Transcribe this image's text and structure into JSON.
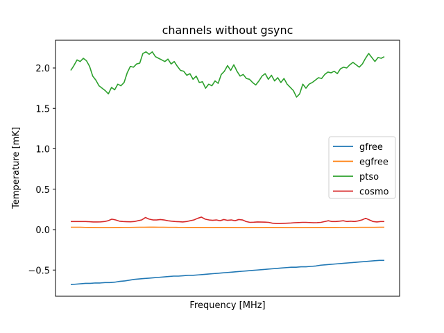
{
  "chart_data": {
    "type": "line",
    "title": "channels without gsync",
    "xlabel": "Frequency [MHz]",
    "ylabel": "Temperature [mK]",
    "x_ticks_visible": false,
    "ylim": [
      -0.8,
      2.35
    ],
    "y_ticks": [
      -0.5,
      0.0,
      0.5,
      1.0,
      1.5,
      2.0
    ],
    "y_tick_labels": [
      "−0.5",
      "0.0",
      "0.5",
      "1.0",
      "1.5",
      "2.0"
    ],
    "legend_position": "center-right",
    "series": [
      {
        "name": "gfree",
        "color": "#1f77b4",
        "values": [
          -0.68,
          -0.675,
          -0.67,
          -0.665,
          -0.665,
          -0.66,
          -0.66,
          -0.655,
          -0.655,
          -0.65,
          -0.64,
          -0.635,
          -0.625,
          -0.615,
          -0.61,
          -0.605,
          -0.6,
          -0.595,
          -0.59,
          -0.585,
          -0.58,
          -0.575,
          -0.575,
          -0.57,
          -0.565,
          -0.565,
          -0.56,
          -0.555,
          -0.55,
          -0.545,
          -0.54,
          -0.535,
          -0.53,
          -0.525,
          -0.52,
          -0.515,
          -0.51,
          -0.505,
          -0.5,
          -0.495,
          -0.49,
          -0.485,
          -0.48,
          -0.475,
          -0.47,
          -0.465,
          -0.465,
          -0.46,
          -0.46,
          -0.455,
          -0.45,
          -0.44,
          -0.435,
          -0.43,
          -0.425,
          -0.42,
          -0.415,
          -0.41,
          -0.405,
          -0.4,
          -0.395,
          -0.39,
          -0.385,
          -0.38,
          -0.38
        ]
      },
      {
        "name": "egfree",
        "color": "#ff7f0e",
        "values": [
          0.03,
          0.03,
          0.03,
          0.028,
          0.027,
          0.026,
          0.025,
          0.025,
          0.025,
          0.026,
          0.027,
          0.028,
          0.028,
          0.029,
          0.03,
          0.03,
          0.031,
          0.031,
          0.03,
          0.03,
          0.029,
          0.029,
          0.028,
          0.028,
          0.027,
          0.027,
          0.027,
          0.026,
          0.026,
          0.026,
          0.027,
          0.027,
          0.026,
          0.026,
          0.025,
          0.025,
          0.025,
          0.026,
          0.026,
          0.026,
          0.027,
          0.027,
          0.026,
          0.026,
          0.025,
          0.025,
          0.025,
          0.025,
          0.025,
          0.026,
          0.026,
          0.027,
          0.027,
          0.027,
          0.027,
          0.028,
          0.028,
          0.028,
          0.028,
          0.029,
          0.029,
          0.029,
          0.029,
          0.03,
          0.03
        ]
      },
      {
        "name": "ptso",
        "color": "#2ca02c",
        "values": [
          1.97,
          2.03,
          2.1,
          2.08,
          2.12,
          2.09,
          2.02,
          1.9,
          1.85,
          1.78,
          1.75,
          1.72,
          1.68,
          1.76,
          1.73,
          1.8,
          1.78,
          1.82,
          1.94,
          2.02,
          2.01,
          2.05,
          2.06,
          2.18,
          2.2,
          2.17,
          2.2,
          2.14,
          2.12,
          2.1,
          2.08,
          2.11,
          2.05,
          2.08,
          2.02,
          1.97,
          1.96,
          1.91,
          1.93,
          1.86,
          1.9,
          1.82,
          1.83,
          1.75,
          1.8,
          1.78,
          1.84,
          1.81,
          1.92,
          1.96,
          2.03,
          1.97,
          2.04,
          1.96,
          1.9,
          1.92,
          1.87,
          1.86,
          1.82,
          1.79,
          1.84,
          1.9,
          1.93,
          1.86,
          1.91,
          1.84,
          1.88,
          1.82,
          1.87,
          1.8,
          1.76,
          1.72,
          1.64,
          1.68,
          1.8,
          1.75,
          1.8,
          1.82,
          1.85,
          1.88,
          1.87,
          1.92,
          1.95,
          1.94,
          1.96,
          1.93,
          1.99,
          2.01,
          2.0,
          2.04,
          2.07,
          2.04,
          2.01,
          2.05,
          2.12,
          2.18,
          2.13,
          2.08,
          2.13,
          2.12,
          2.14
        ]
      },
      {
        "name": "cosmo",
        "color": "#d62728",
        "values": [
          0.1,
          0.1,
          0.1,
          0.1,
          0.1,
          0.098,
          0.095,
          0.095,
          0.096,
          0.1,
          0.11,
          0.13,
          0.12,
          0.105,
          0.1,
          0.098,
          0.097,
          0.1,
          0.11,
          0.12,
          0.15,
          0.13,
          0.12,
          0.12,
          0.125,
          0.12,
          0.11,
          0.105,
          0.1,
          0.098,
          0.095,
          0.1,
          0.11,
          0.12,
          0.14,
          0.155,
          0.13,
          0.12,
          0.115,
          0.12,
          0.11,
          0.125,
          0.115,
          0.12,
          0.11,
          0.125,
          0.12,
          0.1,
          0.09,
          0.092,
          0.095,
          0.094,
          0.093,
          0.09,
          0.08,
          0.075,
          0.075,
          0.078,
          0.08,
          0.082,
          0.085,
          0.087,
          0.09,
          0.09,
          0.088,
          0.085,
          0.086,
          0.09,
          0.1,
          0.11,
          0.1,
          0.1,
          0.105,
          0.11,
          0.1,
          0.105,
          0.1,
          0.108,
          0.12,
          0.14,
          0.12,
          0.1,
          0.095,
          0.1,
          0.1
        ]
      }
    ]
  }
}
